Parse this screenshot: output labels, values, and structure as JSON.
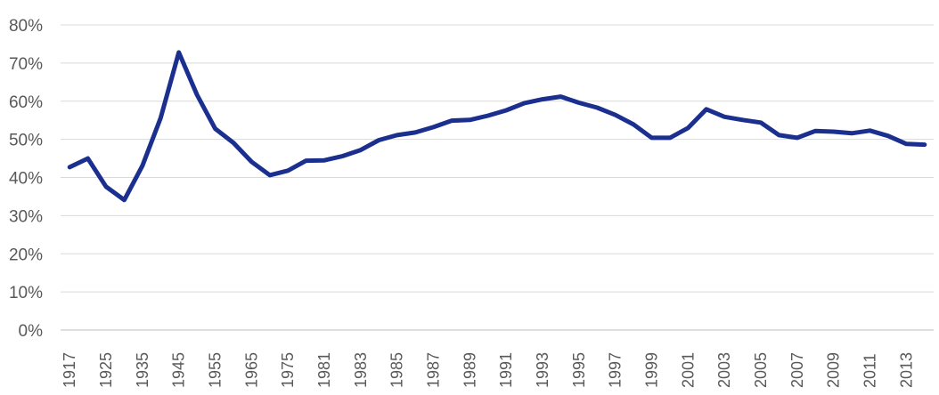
{
  "chart_data": {
    "type": "line",
    "title": "",
    "xlabel": "",
    "ylabel": "",
    "ylim": [
      0,
      80
    ],
    "y_ticks": [
      "0%",
      "10%",
      "20%",
      "30%",
      "40%",
      "50%",
      "60%",
      "70%",
      "80%"
    ],
    "grid": true,
    "legend": "none",
    "line_color": "#1b2f8f",
    "x": [
      "1917",
      "1920",
      "1925",
      "1930",
      "1935",
      "1940",
      "1945",
      "1950",
      "1955",
      "1960",
      "1965",
      "1970",
      "1975",
      "1980",
      "1981",
      "1982",
      "1983",
      "1984",
      "1985",
      "1986",
      "1987",
      "1988",
      "1989",
      "1990",
      "1991",
      "1992",
      "1993",
      "1994",
      "1995",
      "1996",
      "1997",
      "1998",
      "1999",
      "2000",
      "2001",
      "2002",
      "2003",
      "2004",
      "2005",
      "2006",
      "2007",
      "2008",
      "2009",
      "2010",
      "2011",
      "2012",
      "2013",
      "2014"
    ],
    "x_tick_labels": [
      "1917",
      "1925",
      "1935",
      "1945",
      "1955",
      "1965",
      "1975",
      "1981",
      "1983",
      "1985",
      "1987",
      "1989",
      "1991",
      "1993",
      "1995",
      "1997",
      "1999",
      "2001",
      "2003",
      "2005",
      "2007",
      "2009",
      "2011",
      "2013"
    ],
    "series": [
      {
        "values": [
          42.7,
          45.0,
          37.6,
          34.1,
          43.1,
          55.6,
          72.8,
          61.7,
          52.8,
          49.1,
          44.1,
          40.6,
          41.8,
          44.4,
          44.5,
          45.6,
          47.2,
          49.8,
          51.1,
          51.8,
          53.2,
          54.9,
          55.1,
          56.2,
          57.6,
          59.5,
          60.5,
          61.2,
          59.6,
          58.3,
          56.4,
          53.9,
          50.4,
          50.4,
          53.0,
          57.9,
          55.9,
          55.1,
          54.4,
          51.1,
          50.4,
          52.2,
          52.0,
          51.6,
          52.3,
          50.9,
          48.8,
          48.6
        ]
      }
    ]
  }
}
